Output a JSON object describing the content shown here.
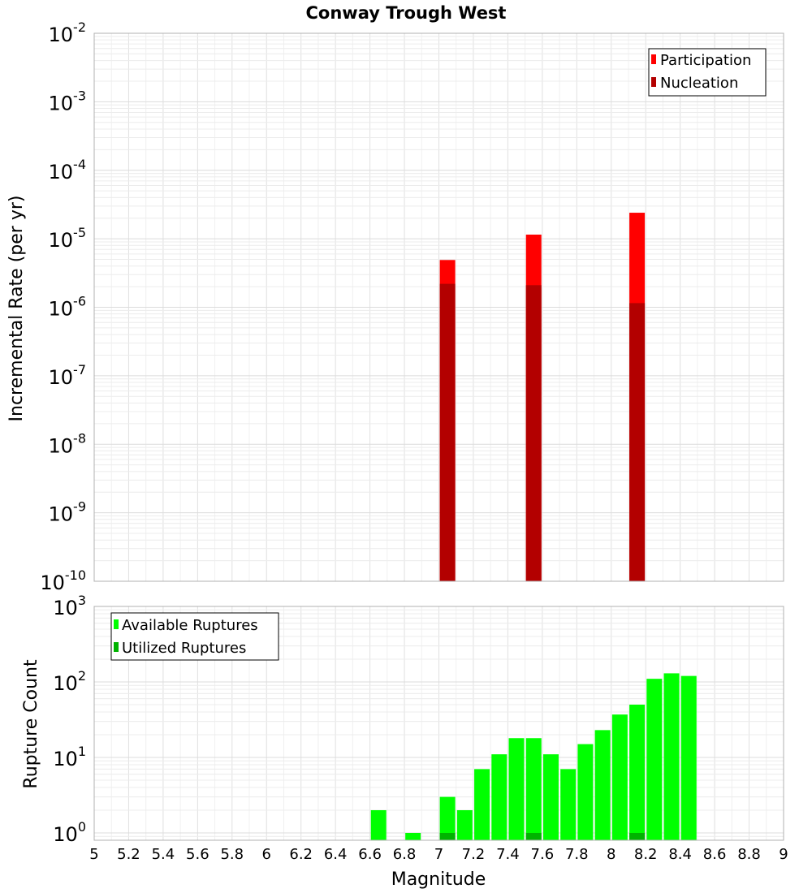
{
  "chart_data": [
    {
      "type": "bar",
      "title": "Conway Trough West",
      "ylabel": "Incremental Rate (per yr)",
      "xlabel": "",
      "xlim": [
        5,
        9
      ],
      "yscale": "log",
      "ylim": [
        1e-10,
        0.01
      ],
      "y_tick_exponents": [
        "-10",
        "-9",
        "-8",
        "-7",
        "-6",
        "-5",
        "-4",
        "-3",
        "-2"
      ],
      "y_tick_base": "10",
      "legend": {
        "position": "top-right",
        "entries": [
          "Participation",
          "Nucleation"
        ]
      },
      "colors": {
        "Participation": "#ff0000",
        "Nucleation": "#b30000"
      },
      "x": [
        7.05,
        7.55,
        8.15
      ],
      "series": [
        {
          "name": "Participation",
          "values": [
            4.9e-06,
            1.15e-05,
            2.4e-05
          ]
        },
        {
          "name": "Nucleation",
          "values": [
            2.2e-06,
            2.1e-06,
            1.15e-06
          ]
        }
      ]
    },
    {
      "type": "bar",
      "title": "",
      "ylabel": "Rupture Count",
      "xlabel": "Magnitude",
      "xlim": [
        5,
        9
      ],
      "x_ticks": [
        "5",
        "5.2",
        "5.4",
        "5.6",
        "5.8",
        "6",
        "6.2",
        "6.4",
        "6.6",
        "6.8",
        "7",
        "7.2",
        "7.4",
        "7.6",
        "7.8",
        "8",
        "8.2",
        "8.4",
        "8.6",
        "8.8",
        "9"
      ],
      "yscale": "log",
      "ylim": [
        0.8,
        1000
      ],
      "y_tick_exponents": [
        "0",
        "1",
        "2",
        "3"
      ],
      "y_tick_base": "10",
      "legend": {
        "position": "top-left",
        "entries": [
          "Available Ruptures",
          "Utilized Ruptures"
        ]
      },
      "colors": {
        "Available Ruptures": "#00ff00",
        "Utilized Ruptures": "#00b300"
      },
      "x": [
        6.65,
        6.85,
        7.05,
        7.15,
        7.25,
        7.35,
        7.45,
        7.55,
        7.65,
        7.75,
        7.85,
        7.95,
        8.05,
        8.15,
        8.25,
        8.35,
        8.45
      ],
      "series": [
        {
          "name": "Available Ruptures",
          "values": [
            2,
            1,
            3,
            2,
            7,
            11,
            18,
            18,
            11,
            7,
            15,
            23,
            37,
            50,
            110,
            130,
            120
          ]
        },
        {
          "name": "Utilized Ruptures",
          "values": [
            0,
            0,
            1,
            0,
            0,
            0,
            0,
            1,
            0,
            0,
            0,
            0,
            0,
            1,
            0,
            0,
            0
          ]
        }
      ]
    }
  ]
}
